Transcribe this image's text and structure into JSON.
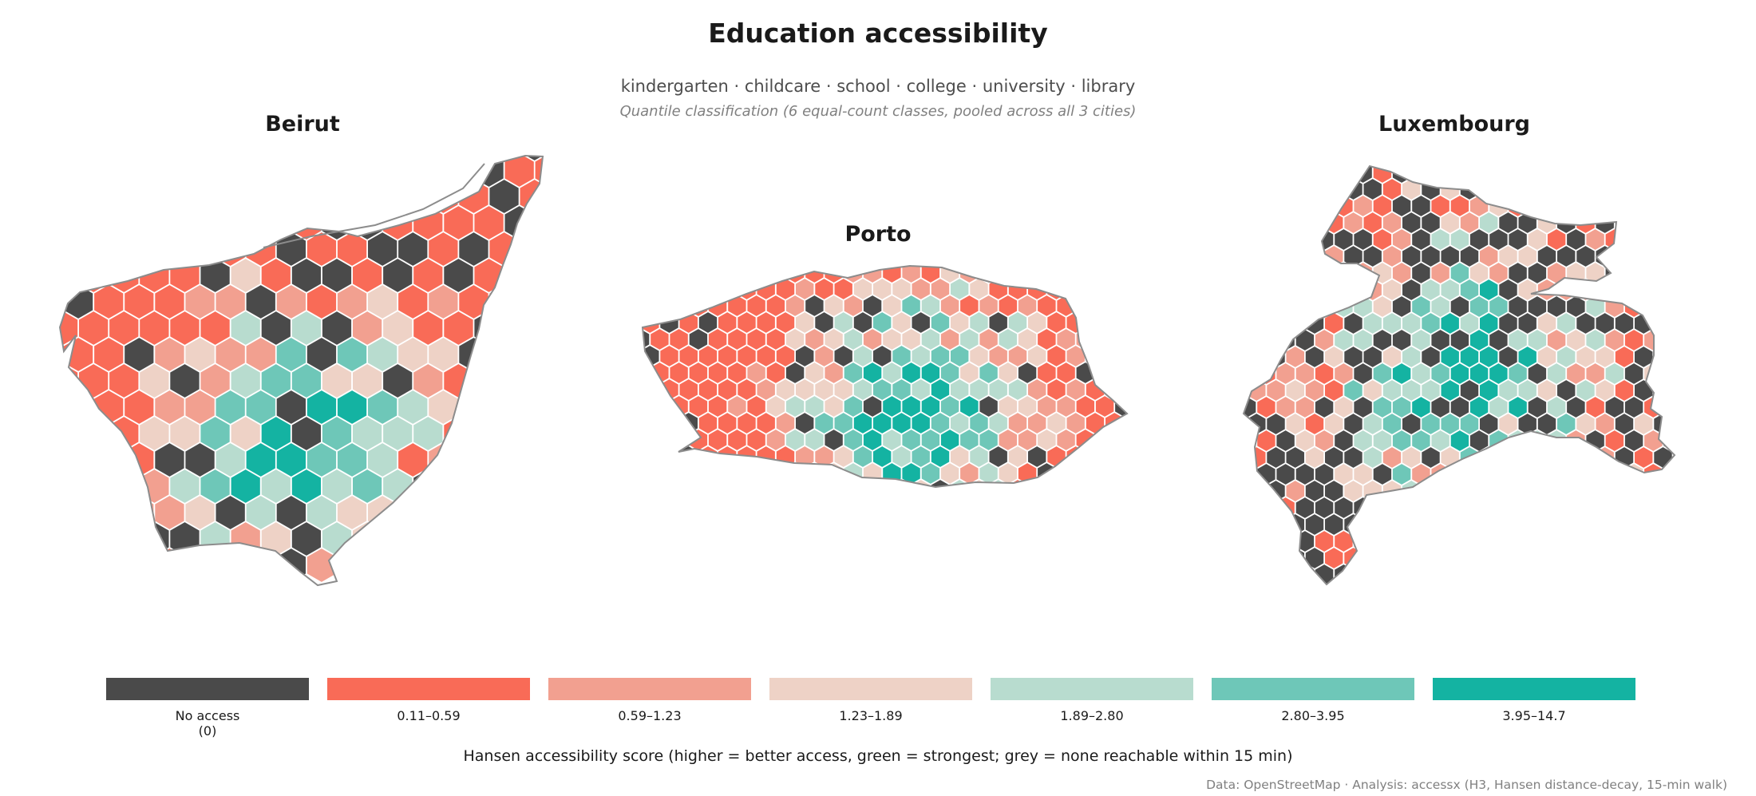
{
  "header": {
    "title": "Education accessibility",
    "subtitle": "kindergarten · childcare · school · college · university · library",
    "note": "Quantile classification (6 equal-count classes, pooled across all 3 cities)"
  },
  "colors": {
    "no_access": "#4a4a4a",
    "outline": "#8c8c8c",
    "classes": [
      "#4a4a4a",
      "#f96b57",
      "#f2a090",
      "#eed2c6",
      "#b8dccf",
      "#6ec7b8",
      "#14b3a2"
    ]
  },
  "cities": [
    {
      "name": "Beirut",
      "class_distribution": [
        0.12,
        0.1,
        0.16,
        0.2,
        0.15,
        0.15,
        0.12
      ],
      "green_core": "south-center"
    },
    {
      "name": "Porto",
      "class_distribution": [
        0.06,
        0.12,
        0.2,
        0.22,
        0.14,
        0.08,
        0.18
      ],
      "green_core": "center"
    },
    {
      "name": "Luxembourg",
      "class_distribution": [
        0.3,
        0.16,
        0.12,
        0.14,
        0.11,
        0.1,
        0.07
      ],
      "green_core": "center"
    }
  ],
  "legend": {
    "items": [
      {
        "label": "No access\n(0)",
        "color": "#4a4a4a"
      },
      {
        "label": "0.11–0.59",
        "color": "#f96b57"
      },
      {
        "label": "0.59–1.23",
        "color": "#f2a090"
      },
      {
        "label": "1.23–1.89",
        "color": "#eed2c6"
      },
      {
        "label": "1.89–2.80",
        "color": "#b8dccf"
      },
      {
        "label": "2.80–3.95",
        "color": "#6ec7b8"
      },
      {
        "label": "3.95–14.7",
        "color": "#14b3a2"
      }
    ],
    "caption": "Hansen accessibility score  (higher = better access, green = strongest; grey = none reachable within 15 min)"
  },
  "credit": "Data: OpenStreetMap  ·  Analysis: accessx (H3, Hansen distance-decay, 15-min walk)"
}
